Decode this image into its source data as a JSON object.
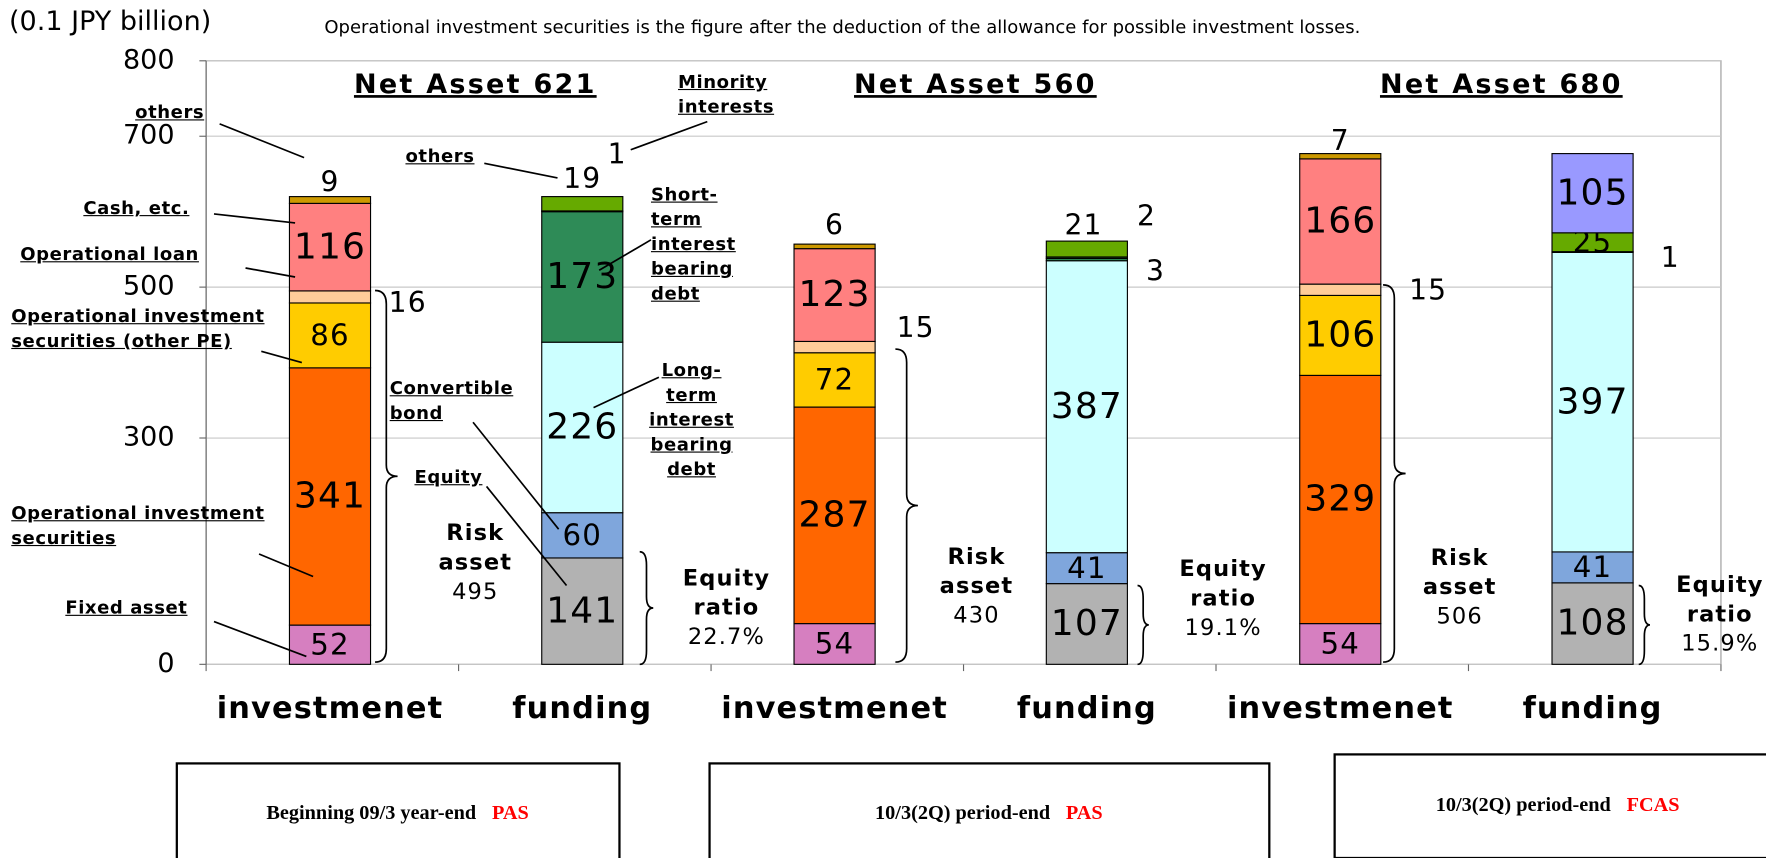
{
  "chart_data": {
    "type": "bar",
    "stacked": true,
    "unit_label": "(0.1 JPY billion)",
    "note": "Operational investment securities is the figure after the deduction of the allowance for possible investment losses.",
    "categories": [
      "investmenet",
      "funding",
      "investmenet",
      "funding",
      "investmenet",
      "funding"
    ],
    "series": [
      {
        "name": "Fixed asset",
        "color": "#d67fc0",
        "values": [
          52,
          null,
          54,
          null,
          54,
          null
        ]
      },
      {
        "name": "Operational investment securities",
        "color": "#ff6600",
        "values": [
          341,
          null,
          287,
          null,
          329,
          null
        ]
      },
      {
        "name": "Operational investment securities (other PE)",
        "color": "#ffcc00",
        "values": [
          86,
          null,
          72,
          null,
          106,
          null
        ]
      },
      {
        "name": "Operational loan",
        "color": "#ffcc99",
        "values": [
          16,
          null,
          15,
          null,
          15,
          null
        ]
      },
      {
        "name": "Cash, etc.",
        "color": "#ff8080",
        "values": [
          116,
          null,
          123,
          null,
          166,
          null
        ]
      },
      {
        "name": "others",
        "color": "#cc9900",
        "values": [
          9,
          null,
          6,
          null,
          7,
          null
        ]
      },
      {
        "name": "Equity",
        "color": "#b2b2b2",
        "values": [
          null,
          141,
          null,
          107,
          null,
          108
        ]
      },
      {
        "name": "Convertible bond",
        "color": "#7fa6dc",
        "values": [
          null,
          60,
          null,
          41,
          null,
          41
        ]
      },
      {
        "name": "Long-term interest bearing debt",
        "color": "#ccffff",
        "values": [
          null,
          226,
          null,
          387,
          null,
          397
        ]
      },
      {
        "name": "Short-term interest bearing debt",
        "color": "#2e8b57",
        "values": [
          null,
          173,
          null,
          3,
          null,
          1
        ]
      },
      {
        "name": "Minority interests",
        "color": "#1a4d1a",
        "values": [
          null,
          1,
          null,
          2,
          null,
          null
        ]
      },
      {
        "name": "others",
        "color": "#66aa00",
        "values": [
          null,
          19,
          null,
          21,
          null,
          25
        ]
      },
      {
        "color": "#9999ff",
        "values": [
          null,
          null,
          null,
          null,
          null,
          105
        ]
      }
    ],
    "ylim": [
      0,
      800
    ],
    "yticks": [
      0,
      300,
      500,
      700,
      800
    ],
    "grid": true,
    "net_assets": [
      "Net Asset 621",
      "Net Asset 560",
      "Net Asset 680"
    ],
    "risk_assets": [
      [
        "Risk",
        "asset",
        "495"
      ],
      [
        "Risk",
        "asset",
        "430"
      ],
      [
        "Risk",
        "asset",
        "506"
      ]
    ],
    "equity_ratios": [
      [
        "Equity",
        "ratio",
        "22.7%"
      ],
      [
        "Equity",
        "ratio",
        "19.1%"
      ],
      [
        "Equity",
        "ratio",
        "15.9%"
      ]
    ],
    "periods": [
      {
        "text": "Beginning 09/3 year-end",
        "standard": "PAS"
      },
      {
        "text": "10/3(2Q) period-end",
        "standard": "PAS"
      },
      {
        "text": "10/3(2Q) period-end",
        "standard": "FCAS"
      }
    ]
  }
}
